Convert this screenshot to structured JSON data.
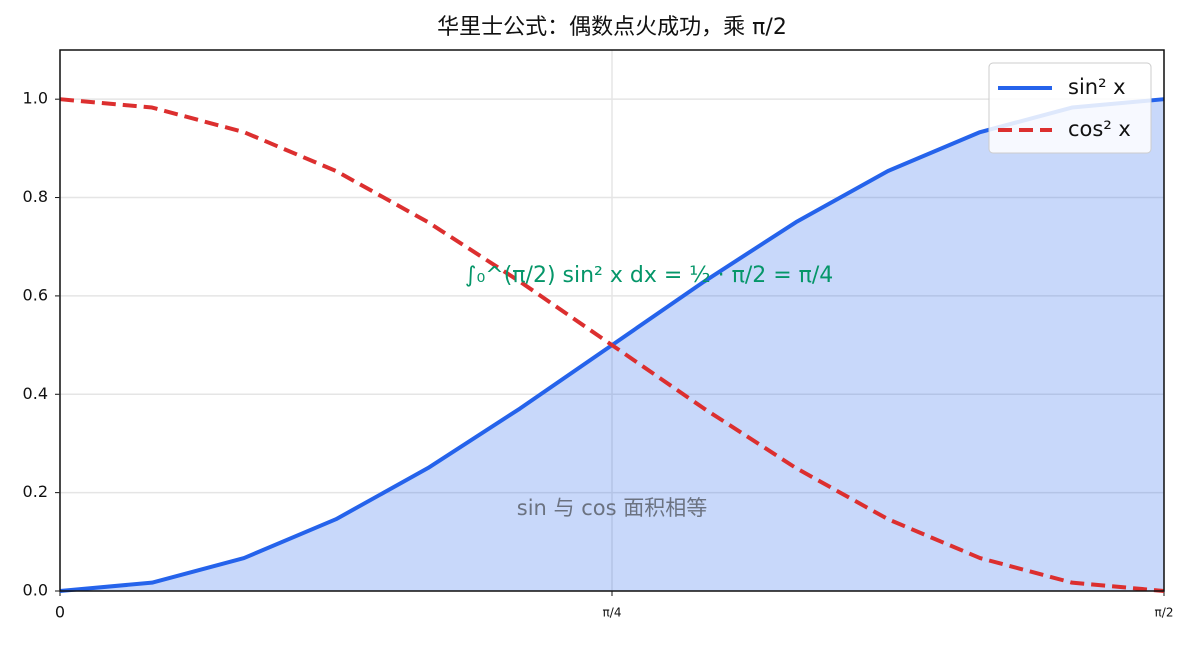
{
  "chart_data": {
    "type": "line",
    "title": "华里士公式：偶数点火成功，乘 π/2",
    "x": [
      0,
      0.1309,
      0.2618,
      0.3927,
      0.5236,
      0.6545,
      0.7854,
      0.9163,
      1.0472,
      1.1781,
      1.309,
      1.4399,
      1.5708
    ],
    "series": [
      {
        "name": "sin² x",
        "color": "#2563eb",
        "fill": true,
        "dashed": false,
        "values": [
          0,
          0.017,
          0.067,
          0.146,
          0.25,
          0.371,
          0.5,
          0.629,
          0.75,
          0.854,
          0.933,
          0.983,
          1
        ]
      },
      {
        "name": "cos² x",
        "color": "#dc2f2f",
        "fill": false,
        "dashed": true,
        "values": [
          1,
          0.983,
          0.933,
          0.854,
          0.75,
          0.629,
          0.5,
          0.371,
          0.25,
          0.146,
          0.067,
          0.017,
          0
        ]
      }
    ],
    "xlim": [
      0,
      1.5708
    ],
    "ylim": [
      0,
      1.1
    ],
    "xticks": [
      0,
      {
        "value": 0.7854,
        "label": "π/4"
      },
      {
        "value": 1.5708,
        "label": "π/2"
      }
    ],
    "yticks": [
      {
        "value": 0,
        "label": "0.0"
      },
      0.2,
      0.4,
      0.6,
      0.8,
      {
        "value": 1,
        "label": "1.0"
      }
    ],
    "grid": true,
    "legend": "upper right",
    "annotations": [
      "∫₀^(π/2) sin² x dx = ½ · π/2 = π/4",
      "sin 与 cos 面积相等"
    ]
  }
}
